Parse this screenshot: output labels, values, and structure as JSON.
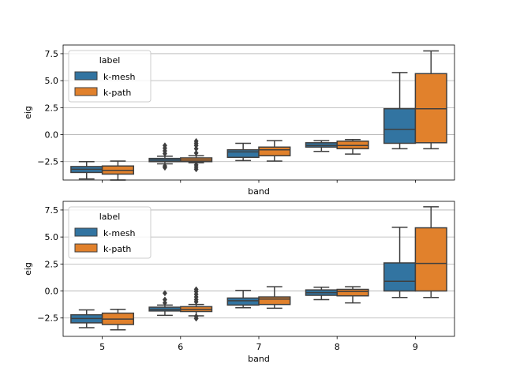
{
  "chart_data": [
    {
      "type": "box",
      "xlabel": "band",
      "ylabel": "eig",
      "ylim": [
        -4.2,
        8.3
      ],
      "yticks": [
        -2.5,
        0.0,
        2.5,
        5.0,
        7.5
      ],
      "ytick_labels": [
        "−2.5",
        "0.0",
        "2.5",
        "5.0",
        "7.5"
      ],
      "categories": [
        "5",
        "6",
        "7",
        "8",
        "9"
      ],
      "show_xtick_labels": false,
      "grid": "y",
      "legend": {
        "title": "label",
        "position": "upper-left",
        "entries": [
          "k-mesh",
          "k-path"
        ]
      },
      "series": [
        {
          "name": "k-mesh",
          "color": "#3274a1",
          "boxes": [
            {
              "whislo": -4.1,
              "q1": -3.5,
              "med": -3.2,
              "q3": -2.95,
              "whishi": -2.5,
              "fliers": []
            },
            {
              "whislo": -2.7,
              "q1": -2.5,
              "med": -2.35,
              "q3": -2.2,
              "whishi": -2.0,
              "fliers": [
                -3.05,
                -2.9,
                -1.75,
                -1.5,
                -1.25,
                -1.0
              ]
            },
            {
              "whislo": -2.4,
              "q1": -2.1,
              "med": -1.6,
              "q3": -1.4,
              "whishi": -0.8,
              "fliers": []
            },
            {
              "whislo": -1.55,
              "q1": -1.15,
              "med": -1.0,
              "q3": -0.75,
              "whishi": -0.55,
              "fliers": []
            },
            {
              "whislo": -1.3,
              "q1": -0.8,
              "med": 0.5,
              "q3": 2.4,
              "whishi": 5.75,
              "fliers": []
            }
          ]
        },
        {
          "name": "k-path",
          "color": "#e1812c",
          "boxes": [
            {
              "whislo": -4.2,
              "q1": -3.65,
              "med": -3.3,
              "q3": -2.9,
              "whishi": -2.45,
              "fliers": []
            },
            {
              "whislo": -2.6,
              "q1": -2.5,
              "med": -2.35,
              "q3": -2.15,
              "whishi": -1.95,
              "fliers": [
                -3.2,
                -3.0,
                -2.8,
                -1.7,
                -1.3,
                -1.0,
                -0.8,
                -0.6
              ]
            },
            {
              "whislo": -2.45,
              "q1": -1.95,
              "med": -1.4,
              "q3": -1.15,
              "whishi": -0.55,
              "fliers": []
            },
            {
              "whislo": -1.8,
              "q1": -1.3,
              "med": -1.0,
              "q3": -0.6,
              "whishi": -0.45,
              "fliers": []
            },
            {
              "whislo": -1.3,
              "q1": -0.75,
              "med": 2.4,
              "q3": 5.65,
              "whishi": 7.75,
              "fliers": []
            }
          ]
        }
      ]
    },
    {
      "type": "box",
      "xlabel": "band",
      "ylabel": "eig",
      "ylim": [
        -4.2,
        8.3
      ],
      "yticks": [
        -2.5,
        0.0,
        2.5,
        5.0,
        7.5
      ],
      "ytick_labels": [
        "−2.5",
        "0.0",
        "2.5",
        "5.0",
        "7.5"
      ],
      "categories": [
        "5",
        "6",
        "7",
        "8",
        "9"
      ],
      "show_xtick_labels": true,
      "grid": "y",
      "legend": {
        "title": "label",
        "position": "upper-left",
        "entries": [
          "k-mesh",
          "k-path"
        ]
      },
      "series": [
        {
          "name": "k-mesh",
          "color": "#3274a1",
          "boxes": [
            {
              "whislo": -3.4,
              "q1": -2.95,
              "med": -2.55,
              "q3": -2.2,
              "whishi": -1.75,
              "fliers": []
            },
            {
              "whislo": -2.25,
              "q1": -1.85,
              "med": -1.7,
              "q3": -1.5,
              "whishi": -1.3,
              "fliers": [
                -1.1,
                -0.8,
                -0.2
              ]
            },
            {
              "whislo": -1.55,
              "q1": -1.3,
              "med": -0.9,
              "q3": -0.65,
              "whishi": 0.05,
              "fliers": []
            },
            {
              "whislo": -0.8,
              "q1": -0.4,
              "med": -0.15,
              "q3": 0.1,
              "whishi": 0.35,
              "fliers": []
            },
            {
              "whislo": -0.6,
              "q1": 0.0,
              "med": 0.9,
              "q3": 2.6,
              "whishi": 5.9,
              "fliers": []
            }
          ]
        },
        {
          "name": "k-path",
          "color": "#e1812c",
          "boxes": [
            {
              "whislo": -3.6,
              "q1": -3.1,
              "med": -2.6,
              "q3": -2.05,
              "whishi": -1.7,
              "fliers": []
            },
            {
              "whislo": -2.3,
              "q1": -1.9,
              "med": -1.7,
              "q3": -1.45,
              "whishi": -1.25,
              "fliers": [
                -2.55,
                -2.35,
                -1.0,
                -0.8,
                -0.55,
                -0.3,
                -0.05,
                0.15
              ]
            },
            {
              "whislo": -1.6,
              "q1": -1.25,
              "med": -0.75,
              "q3": -0.55,
              "whishi": 0.4,
              "fliers": []
            },
            {
              "whislo": -1.1,
              "q1": -0.45,
              "med": -0.05,
              "q3": 0.15,
              "whishi": 0.4,
              "fliers": []
            },
            {
              "whislo": -0.6,
              "q1": 0.0,
              "med": 2.55,
              "q3": 5.85,
              "whishi": 7.8,
              "fliers": []
            }
          ]
        }
      ]
    }
  ]
}
